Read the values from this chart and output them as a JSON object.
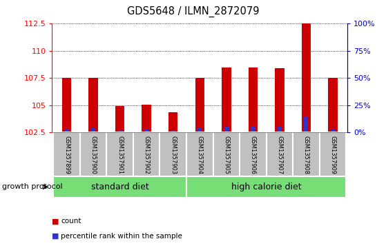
{
  "title": "GDS5648 / ILMN_2872079",
  "samples": [
    "GSM1357899",
    "GSM1357900",
    "GSM1357901",
    "GSM1357902",
    "GSM1357903",
    "GSM1357904",
    "GSM1357905",
    "GSM1357906",
    "GSM1357907",
    "GSM1357908",
    "GSM1357909"
  ],
  "counts": [
    107.5,
    107.5,
    104.9,
    105.05,
    104.35,
    107.5,
    108.5,
    108.5,
    108.4,
    112.5,
    107.5
  ],
  "percentiles": [
    3.5,
    4.0,
    2.0,
    2.5,
    2.0,
    4.0,
    5.0,
    5.0,
    5.0,
    15.0,
    3.0
  ],
  "baseline": 102.5,
  "ylim_left": [
    102.5,
    112.5
  ],
  "ylim_right": [
    0,
    100
  ],
  "yticks_left": [
    102.5,
    105.0,
    107.5,
    110.0,
    112.5
  ],
  "yticks_right": [
    0,
    25,
    50,
    75,
    100
  ],
  "ytick_labels_left": [
    "102.5",
    "105",
    "107.5",
    "110",
    "112.5"
  ],
  "ytick_labels_right": [
    "0%",
    "25%",
    "50%",
    "75%",
    "100%"
  ],
  "bar_color": "#cc0000",
  "percentile_color": "#3333cc",
  "grid_color": "#000000",
  "n_standard": 5,
  "n_high": 6,
  "group_label_standard": "standard diet",
  "group_label_high": "high calorie diet",
  "group_protocol_label": "growth protocol",
  "group_bg_color": "#77dd77",
  "tick_bg_color": "#c0c0c0",
  "legend_count": "count",
  "legend_percentile": "percentile rank within the sample",
  "bar_width": 0.35
}
